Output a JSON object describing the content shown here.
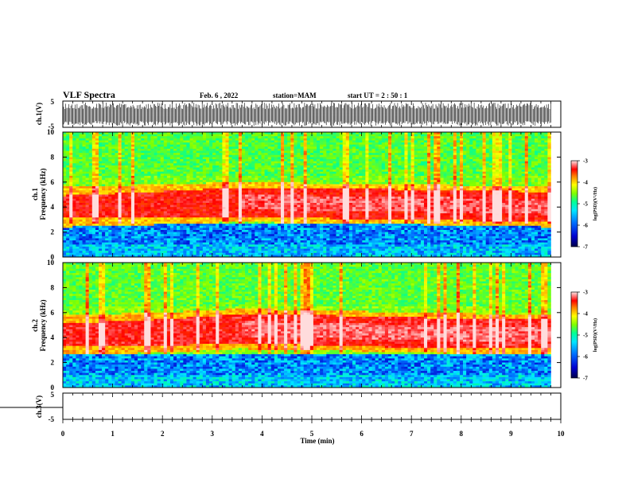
{
  "header": {
    "title": "VLF Spectra",
    "date": "Feb. 6 , 2022",
    "station": "station=MAM",
    "start": "start  UT =  2 : 50 : 1"
  },
  "chart_data": [
    {
      "type": "line",
      "name": "ch1-waveform",
      "ylabel": "ch.1(V)",
      "ylim": [
        -5,
        5
      ],
      "yticks": [
        "5",
        "-5"
      ],
      "xlim": [
        0,
        10
      ],
      "description_of_signal": "dense impulsive noise spanning full range",
      "data_end_min": 9.8
    },
    {
      "type": "heatmap",
      "name": "ch1-spectrogram",
      "ylabel": "ch.1\nFrequency (kHz)",
      "ylim": [
        0,
        10
      ],
      "yticks": [
        "0",
        "2",
        "4",
        "6",
        "8",
        "10"
      ],
      "xlim": [
        0,
        10
      ],
      "data_end_min": 9.8,
      "colorbar": {
        "label": "log(PSD)(V²/Hz)",
        "range": [
          -7,
          -3
        ],
        "ticks": [
          "-3",
          "-4",
          "-5",
          "-6",
          "-7"
        ]
      },
      "band_center_khz": [
        4.0,
        4.2,
        4.4,
        4.3,
        4.2,
        4.1,
        4.0
      ],
      "band_time_min": [
        0,
        2,
        3.5,
        5,
        7,
        8.5,
        9.8
      ]
    },
    {
      "type": "heatmap",
      "name": "ch2-spectrogram",
      "ylabel": "ch.2\nFrequency (kHz)",
      "ylim": [
        0,
        10
      ],
      "yticks": [
        "0",
        "2",
        "4",
        "6",
        "8",
        "10"
      ],
      "xlim": [
        0,
        10
      ],
      "data_end_min": 9.8,
      "colorbar": {
        "label": "log(PSD)(V²/Hz)",
        "range": [
          -7,
          -3
        ],
        "ticks": [
          "-3",
          "-4",
          "-5",
          "-6",
          "-7"
        ]
      },
      "band_center_khz": [
        4.2,
        4.4,
        4.7,
        4.6,
        4.4,
        4.3,
        4.3
      ],
      "band_time_min": [
        0,
        2,
        3.5,
        5,
        7,
        8.5,
        9.8
      ]
    },
    {
      "type": "line",
      "name": "ch3-waveform",
      "ylabel": "ch.3(V)",
      "ylim": [
        -5,
        5
      ],
      "yticks": [
        "5",
        "-5"
      ],
      "xlim": [
        0,
        10
      ],
      "values_constant": 0
    }
  ],
  "xaxis": {
    "label": "Time  (min)",
    "ticks": [
      "0",
      "1",
      "2",
      "3",
      "4",
      "5",
      "6",
      "7",
      "8",
      "9",
      "10"
    ]
  },
  "colors": {
    "colormap": [
      "#00005a",
      "#0000c8",
      "#0050ff",
      "#00c8ff",
      "#00ffb4",
      "#64ff32",
      "#e6ff00",
      "#ffb400",
      "#ff3c00",
      "#ff0000",
      "#ffc8c8"
    ]
  }
}
